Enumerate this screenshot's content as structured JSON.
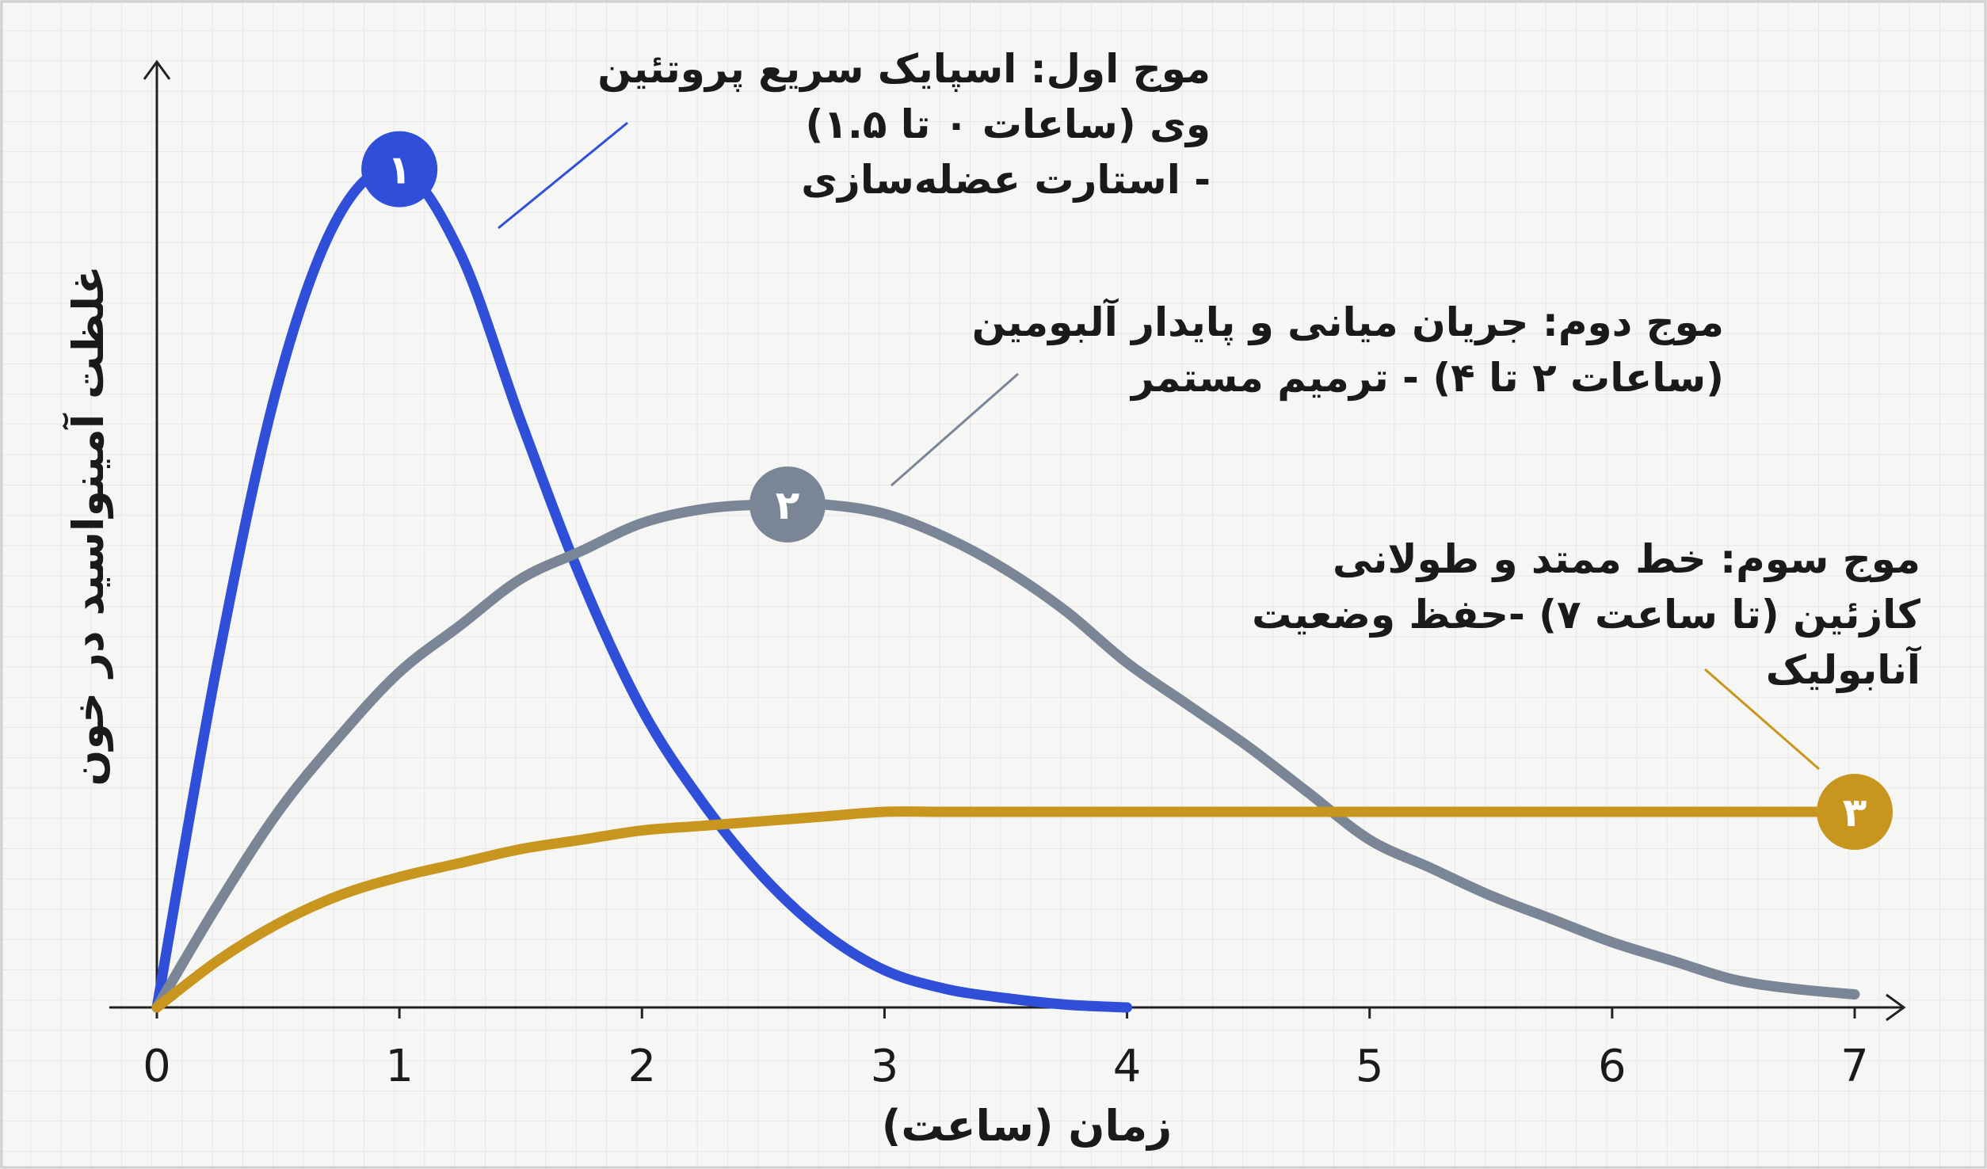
{
  "chart_data": {
    "type": "line",
    "xlabel": "زمان (ساعت)",
    "ylabel": "غلظت آمینواسید در خون",
    "x": [
      0,
      0.25,
      0.5,
      0.75,
      1,
      1.25,
      1.5,
      1.75,
      2,
      2.25,
      2.5,
      2.75,
      3,
      3.25,
      3.5,
      3.75,
      4,
      4.25,
      4.5,
      4.75,
      5,
      5.25,
      5.5,
      5.75,
      6,
      6.25,
      6.5,
      6.75,
      7
    ],
    "xlim": [
      0,
      7
    ],
    "xticks": [
      0,
      1,
      2,
      3,
      4,
      5,
      6,
      7
    ],
    "ylim": [
      0,
      100
    ],
    "grid": true,
    "series": [
      {
        "color": "#2f4fd8",
        "values": [
          0,
          37,
          67,
          85,
          90,
          81,
          63,
          46,
          32,
          22,
          14,
          8,
          4,
          2,
          1,
          0.3,
          0,
          null,
          null,
          null,
          null,
          null,
          null,
          null,
          null,
          null,
          null,
          null,
          null
        ]
      },
      {
        "color": "#7a8696",
        "values": [
          0,
          11,
          21,
          29,
          36,
          41,
          46,
          49,
          52,
          53.5,
          54,
          54,
          53,
          50.5,
          47,
          42.5,
          37,
          32.5,
          28,
          23,
          18,
          15,
          12,
          9.5,
          7,
          5,
          3,
          2,
          1.4
        ]
      },
      {
        "color": "#c8961e",
        "values": [
          0,
          5,
          9,
          12,
          14,
          15.5,
          17,
          18,
          19,
          19.5,
          20,
          20.5,
          21,
          21,
          21,
          21,
          21,
          21,
          21,
          21,
          21,
          21,
          21,
          21,
          21,
          21,
          21,
          21,
          21
        ]
      }
    ],
    "markers": [
      {
        "label": "۱",
        "x": 1,
        "y": 90,
        "color": "#2f4fd8"
      },
      {
        "label": "۲",
        "x": 2.6,
        "y": 54,
        "color": "#7a8696"
      },
      {
        "label": "۳",
        "x": 7,
        "y": 21,
        "color": "#c8961e"
      }
    ],
    "annotations": [
      {
        "lines": [
          "موج اول: اسپایک سریع پروتئین",
          "وی (ساعات ۰ تا ۱.۵)",
          "- استارت عضله‌سازی"
        ]
      },
      {
        "lines": [
          "موج دوم: جریان میانی و پایدار آلبومین",
          "(ساعات ۲ تا ۴) - ترمیم مستمر"
        ]
      },
      {
        "lines": [
          "موج سوم: خط ممتد و طولانی",
          "کازئین (تا ساعت ۷) -حفظ وضعیت",
          "آنابولیک"
        ]
      }
    ]
  }
}
